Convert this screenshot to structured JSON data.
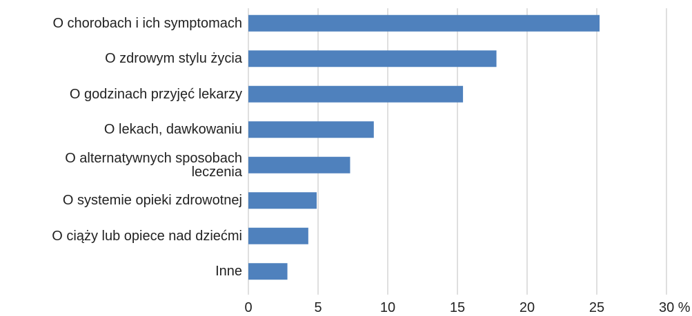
{
  "chart_data": {
    "type": "bar",
    "orientation": "horizontal",
    "categories": [
      "O chorobach i ich symptomach",
      "O zdrowym stylu życia",
      "O godzinach przyjęć lekarzy",
      "O lekach, dawkowaniu",
      "O alternatywnych sposobach\nleczenia",
      "O systemie opieki zdrowotnej",
      "O ciąży lub opiece nad dziećmi",
      "Inne"
    ],
    "values": [
      25.2,
      17.8,
      15.4,
      9.0,
      7.3,
      4.9,
      4.3,
      2.8
    ],
    "color": "#4f81bd",
    "xlim": [
      0,
      30
    ],
    "xticks": [
      0,
      5,
      10,
      15,
      20,
      25,
      {
        "value": 30,
        "label": "30 %"
      }
    ],
    "grid": true
  }
}
